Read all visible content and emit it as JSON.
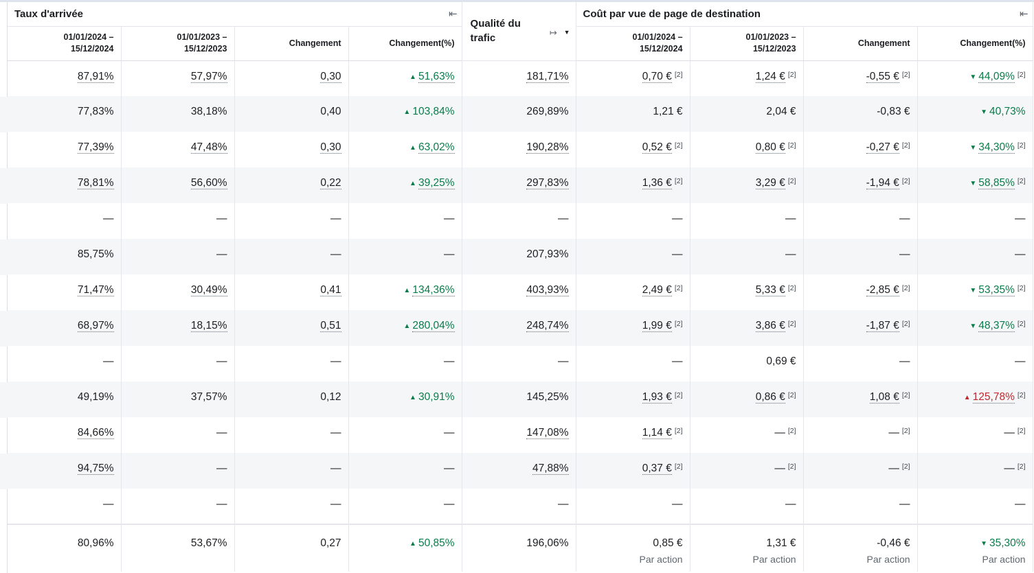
{
  "headers": {
    "group_arrival": "Taux d'arrivée",
    "group_quality": "Qualité du trafic",
    "group_cost": "Coût par vue de page de destination",
    "columns": [
      "01/01/2024 –\n15/12/2024",
      "01/01/2023 –\n15/12/2023",
      "Changement",
      "Changement(%)"
    ]
  },
  "icons": {
    "collapse": "collapse-left-icon",
    "expand": "expand-right-icon",
    "caret": "caret-down-icon"
  },
  "rows": [
    {
      "a": [
        "87,91%",
        "57,97%",
        "0,30",
        "51,63%"
      ],
      "a_dir": "up",
      "a_link": true,
      "q": "181,71%",
      "c": [
        "0,70 €",
        "1,24 €",
        "-0,55 €",
        "44,09%"
      ],
      "c_dir": "down",
      "c_link": true,
      "c_note": "[2]"
    },
    {
      "a": [
        "77,83%",
        "38,18%",
        "0,40",
        "103,84%"
      ],
      "a_dir": "up",
      "a_link": false,
      "q": "269,89%",
      "c": [
        "1,21 €",
        "2,04 €",
        "-0,83 €",
        "40,73%"
      ],
      "c_dir": "down",
      "c_link": false,
      "c_note": ""
    },
    {
      "a": [
        "77,39%",
        "47,48%",
        "0,30",
        "63,02%"
      ],
      "a_dir": "up",
      "a_link": true,
      "q": "190,28%",
      "c": [
        "0,52 €",
        "0,80 €",
        "-0,27 €",
        "34,30%"
      ],
      "c_dir": "down",
      "c_link": true,
      "c_note": "[2]"
    },
    {
      "a": [
        "78,81%",
        "56,60%",
        "0,22",
        "39,25%"
      ],
      "a_dir": "up",
      "a_link": true,
      "q": "297,83%",
      "c": [
        "1,36 €",
        "3,29 €",
        "-1,94 €",
        "58,85%"
      ],
      "c_dir": "down",
      "c_link": true,
      "c_note": "[2]"
    },
    {
      "a": [
        "—",
        "—",
        "—",
        "—"
      ],
      "a_dir": "",
      "a_link": false,
      "q": "—",
      "c": [
        "—",
        "—",
        "—",
        "—"
      ],
      "c_dir": "",
      "c_link": false,
      "c_note": ""
    },
    {
      "a": [
        "85,75%",
        "—",
        "—",
        "—"
      ],
      "a_dir": "",
      "a_link": false,
      "q": "207,93%",
      "c": [
        "—",
        "—",
        "—",
        "—"
      ],
      "c_dir": "",
      "c_link": false,
      "c_note": ""
    },
    {
      "a": [
        "71,47%",
        "30,49%",
        "0,41",
        "134,36%"
      ],
      "a_dir": "up",
      "a_link": true,
      "q": "403,93%",
      "c": [
        "2,49 €",
        "5,33 €",
        "-2,85 €",
        "53,35%"
      ],
      "c_dir": "down",
      "c_link": true,
      "c_note": "[2]"
    },
    {
      "a": [
        "68,97%",
        "18,15%",
        "0,51",
        "280,04%"
      ],
      "a_dir": "up",
      "a_link": true,
      "q": "248,74%",
      "c": [
        "1,99 €",
        "3,86 €",
        "-1,87 €",
        "48,37%"
      ],
      "c_dir": "down",
      "c_link": true,
      "c_note": "[2]"
    },
    {
      "a": [
        "—",
        "—",
        "—",
        "—"
      ],
      "a_dir": "",
      "a_link": false,
      "q": "—",
      "c": [
        "—",
        "0,69 €",
        "—",
        "—"
      ],
      "c_dir": "",
      "c_link": false,
      "c_note": ""
    },
    {
      "a": [
        "49,19%",
        "37,57%",
        "0,12",
        "30,91%"
      ],
      "a_dir": "up",
      "a_link": false,
      "q": "145,25%",
      "c": [
        "1,93 €",
        "0,86 €",
        "1,08 €",
        "125,78%"
      ],
      "c_dir": "bad",
      "c_link": true,
      "c_note": "[2]"
    },
    {
      "a": [
        "84,66%",
        "—",
        "—",
        "—"
      ],
      "a_dir": "",
      "a_link": true,
      "q": "147,08%",
      "c": [
        "1,14 €",
        "—",
        "—",
        "—"
      ],
      "c_dir": "",
      "c_link": true,
      "c_note": "[2]"
    },
    {
      "a": [
        "94,75%",
        "—",
        "—",
        "—"
      ],
      "a_dir": "",
      "a_link": true,
      "q": "47,88%",
      "c": [
        "0,37 €",
        "—",
        "—",
        "—"
      ],
      "c_dir": "",
      "c_link": true,
      "c_note": "[2]"
    },
    {
      "a": [
        "—",
        "—",
        "—",
        "—"
      ],
      "a_dir": "",
      "a_link": false,
      "q": "—",
      "c": [
        "—",
        "—",
        "—",
        "—"
      ],
      "c_dir": "",
      "c_link": false,
      "c_note": ""
    }
  ],
  "total": {
    "a": [
      "80,96%",
      "53,67%",
      "0,27",
      "50,85%"
    ],
    "a_dir": "up",
    "q": "196,06%",
    "c": [
      "0,85 €",
      "1,31 €",
      "-0,46 €",
      "35,30%"
    ],
    "c_dir": "down",
    "per_action": "Par action"
  },
  "colors": {
    "positive": "#0a7c4a",
    "negative": "#c0282e",
    "stripe": "#f5f6f7",
    "border": "#e4e6eb"
  }
}
